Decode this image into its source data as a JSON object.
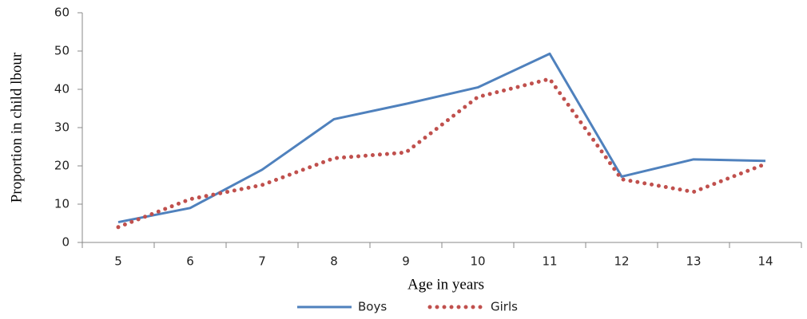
{
  "chart_data": {
    "type": "line",
    "x_label": "Age in years",
    "y_label": "Proportion in child lbour",
    "categories": [
      "5",
      "6",
      "7",
      "8",
      "9",
      "10",
      "11",
      "12",
      "13",
      "14"
    ],
    "series": [
      {
        "name": "Boys",
        "color": "#4f81bd",
        "style": "solid",
        "values": [
          5.3,
          9,
          19,
          32.2,
          36.2,
          40.5,
          49.3,
          17.2,
          21.7,
          21.3
        ]
      },
      {
        "name": "Girls",
        "color": "#c0504d",
        "style": "dotted",
        "values": [
          4,
          11.3,
          15,
          22,
          23.5,
          38,
          42.7,
          16.5,
          13.2,
          20.5
        ]
      }
    ],
    "ylim": [
      0,
      60
    ],
    "yticks": [
      0,
      10,
      20,
      30,
      40,
      50,
      60
    ],
    "grid": false,
    "legend": "bottom"
  }
}
